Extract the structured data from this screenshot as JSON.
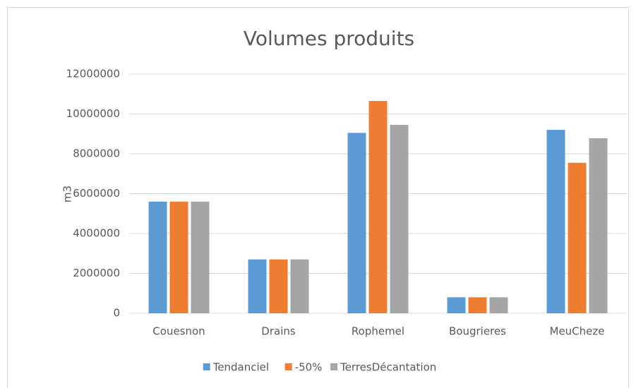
{
  "chart_data": {
    "type": "bar",
    "title": "Volumes produits",
    "y_label": "m3",
    "categories": [
      "Couesnon",
      "Drains",
      "Rophemel",
      "Bougrieres",
      "MeuCheze"
    ],
    "series": [
      {
        "name": "Tendanciel",
        "color": "#5b9bd5",
        "values": [
          5600000,
          2700000,
          9050000,
          800000,
          9200000
        ]
      },
      {
        "name": "-50%",
        "color": "#ed7d31",
        "values": [
          5600000,
          2700000,
          10650000,
          800000,
          7550000
        ]
      },
      {
        "name": "TerresDécantation",
        "color": "#a5a5a5",
        "values": [
          5600000,
          2700000,
          9450000,
          800000,
          8780000
        ]
      }
    ],
    "ylim": [
      0,
      12000000
    ],
    "yticks": [
      0,
      2000000,
      4000000,
      6000000,
      8000000,
      10000000,
      12000000
    ],
    "grid": true,
    "legend": "bottom"
  }
}
